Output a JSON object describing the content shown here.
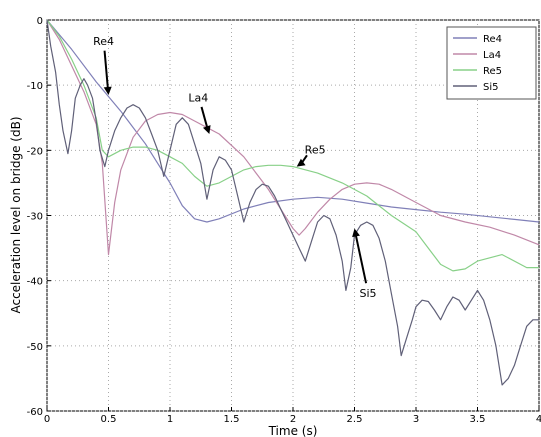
{
  "chart_data": {
    "type": "line",
    "xlabel": "Time (s)",
    "ylabel": "Acceleration level on bridge (dB)",
    "xlim": [
      0,
      4
    ],
    "ylim": [
      -60,
      0
    ],
    "xticks": [
      "0",
      "0.5",
      "1",
      "1.5",
      "2",
      "2.5",
      "3",
      "3.5",
      "4"
    ],
    "yticks": [
      "0",
      "-10",
      "-20",
      "-30",
      "-40",
      "-50",
      "-60"
    ],
    "grid": true,
    "legend_position": "top-right",
    "series": [
      {
        "name": "Re4",
        "color": "#8080b8",
        "points": [
          [
            0,
            0
          ],
          [
            0.2,
            -4.5
          ],
          [
            0.4,
            -9.5
          ],
          [
            0.6,
            -14
          ],
          [
            0.8,
            -19
          ],
          [
            1.0,
            -25
          ],
          [
            1.1,
            -28.5
          ],
          [
            1.2,
            -30.5
          ],
          [
            1.3,
            -31
          ],
          [
            1.4,
            -30.5
          ],
          [
            1.6,
            -29
          ],
          [
            1.8,
            -28
          ],
          [
            2.0,
            -27.5
          ],
          [
            2.2,
            -27.2
          ],
          [
            2.4,
            -27.5
          ],
          [
            2.6,
            -28.1
          ],
          [
            2.8,
            -28.7
          ],
          [
            3.0,
            -29.1
          ],
          [
            3.2,
            -29.5
          ],
          [
            3.4,
            -29.8
          ],
          [
            3.6,
            -30.2
          ],
          [
            3.8,
            -30.6
          ],
          [
            4.0,
            -31
          ]
        ]
      },
      {
        "name": "La4",
        "color": "#c088a8",
        "points": [
          [
            0,
            0
          ],
          [
            0.1,
            -3
          ],
          [
            0.2,
            -7
          ],
          [
            0.3,
            -11
          ],
          [
            0.4,
            -16
          ],
          [
            0.45,
            -22
          ],
          [
            0.5,
            -36
          ],
          [
            0.55,
            -28
          ],
          [
            0.6,
            -23
          ],
          [
            0.7,
            -18
          ],
          [
            0.8,
            -15.5
          ],
          [
            0.9,
            -14.5
          ],
          [
            1.0,
            -14.2
          ],
          [
            1.1,
            -14.5
          ],
          [
            1.2,
            -15.5
          ],
          [
            1.4,
            -17.5
          ],
          [
            1.6,
            -21
          ],
          [
            1.8,
            -26
          ],
          [
            1.9,
            -29
          ],
          [
            2.0,
            -32
          ],
          [
            2.05,
            -33
          ],
          [
            2.1,
            -32
          ],
          [
            2.2,
            -29.5
          ],
          [
            2.3,
            -27.5
          ],
          [
            2.4,
            -26
          ],
          [
            2.5,
            -25.2
          ],
          [
            2.6,
            -25
          ],
          [
            2.7,
            -25.2
          ],
          [
            2.8,
            -26
          ],
          [
            3.0,
            -28
          ],
          [
            3.2,
            -30
          ],
          [
            3.4,
            -31
          ],
          [
            3.6,
            -31.8
          ],
          [
            3.8,
            -33
          ],
          [
            4.0,
            -34.5
          ]
        ]
      },
      {
        "name": "Re5",
        "color": "#88d088",
        "points": [
          [
            0,
            0
          ],
          [
            0.1,
            -2.5
          ],
          [
            0.2,
            -6
          ],
          [
            0.3,
            -10
          ],
          [
            0.4,
            -15
          ],
          [
            0.45,
            -20
          ],
          [
            0.5,
            -21
          ],
          [
            0.6,
            -20
          ],
          [
            0.7,
            -19.5
          ],
          [
            0.8,
            -19.5
          ],
          [
            0.9,
            -20
          ],
          [
            1.0,
            -21
          ],
          [
            1.1,
            -22
          ],
          [
            1.2,
            -24
          ],
          [
            1.3,
            -25.5
          ],
          [
            1.4,
            -25
          ],
          [
            1.5,
            -24
          ],
          [
            1.6,
            -23
          ],
          [
            1.7,
            -22.5
          ],
          [
            1.8,
            -22.3
          ],
          [
            1.9,
            -22.3
          ],
          [
            2.0,
            -22.5
          ],
          [
            2.2,
            -23.5
          ],
          [
            2.4,
            -25
          ],
          [
            2.6,
            -27
          ],
          [
            2.8,
            -30
          ],
          [
            3.0,
            -32.5
          ],
          [
            3.1,
            -35
          ],
          [
            3.2,
            -37.5
          ],
          [
            3.3,
            -38.5
          ],
          [
            3.4,
            -38.2
          ],
          [
            3.5,
            -37
          ],
          [
            3.7,
            -36
          ],
          [
            3.9,
            -38
          ],
          [
            4.0,
            -38
          ]
        ]
      },
      {
        "name": "Si5",
        "color": "#606078",
        "points": [
          [
            0,
            0
          ],
          [
            0.03,
            -4
          ],
          [
            0.07,
            -8
          ],
          [
            0.1,
            -13
          ],
          [
            0.13,
            -17
          ],
          [
            0.17,
            -20.5
          ],
          [
            0.2,
            -17
          ],
          [
            0.23,
            -12
          ],
          [
            0.27,
            -10
          ],
          [
            0.3,
            -9
          ],
          [
            0.33,
            -10
          ],
          [
            0.37,
            -12
          ],
          [
            0.4,
            -15.5
          ],
          [
            0.43,
            -20
          ],
          [
            0.47,
            -22.5
          ],
          [
            0.5,
            -20
          ],
          [
            0.55,
            -17
          ],
          [
            0.6,
            -15
          ],
          [
            0.65,
            -13.5
          ],
          [
            0.7,
            -13
          ],
          [
            0.75,
            -13.5
          ],
          [
            0.8,
            -15
          ],
          [
            0.85,
            -17.5
          ],
          [
            0.9,
            -20
          ],
          [
            0.95,
            -24
          ],
          [
            1.0,
            -20
          ],
          [
            1.05,
            -16
          ],
          [
            1.1,
            -15
          ],
          [
            1.15,
            -16
          ],
          [
            1.2,
            -19
          ],
          [
            1.25,
            -22
          ],
          [
            1.3,
            -27.5
          ],
          [
            1.35,
            -23
          ],
          [
            1.4,
            -21
          ],
          [
            1.45,
            -21.5
          ],
          [
            1.5,
            -23
          ],
          [
            1.55,
            -27
          ],
          [
            1.6,
            -31
          ],
          [
            1.65,
            -28
          ],
          [
            1.7,
            -26
          ],
          [
            1.75,
            -25.2
          ],
          [
            1.8,
            -25.5
          ],
          [
            1.85,
            -27
          ],
          [
            1.9,
            -29
          ],
          [
            1.95,
            -31
          ],
          [
            2.0,
            -33
          ],
          [
            2.05,
            -35
          ],
          [
            2.1,
            -37
          ],
          [
            2.15,
            -34
          ],
          [
            2.2,
            -31
          ],
          [
            2.25,
            -30
          ],
          [
            2.3,
            -30.5
          ],
          [
            2.35,
            -33
          ],
          [
            2.4,
            -37
          ],
          [
            2.43,
            -41.5
          ],
          [
            2.47,
            -38
          ],
          [
            2.5,
            -33
          ],
          [
            2.55,
            -31.5
          ],
          [
            2.6,
            -31
          ],
          [
            2.65,
            -31.5
          ],
          [
            2.7,
            -33.5
          ],
          [
            2.75,
            -37
          ],
          [
            2.8,
            -42
          ],
          [
            2.85,
            -47
          ],
          [
            2.88,
            -51.5
          ],
          [
            2.92,
            -49
          ],
          [
            2.97,
            -46
          ],
          [
            3.0,
            -44
          ],
          [
            3.05,
            -43
          ],
          [
            3.1,
            -43.2
          ],
          [
            3.15,
            -44.5
          ],
          [
            3.2,
            -46
          ],
          [
            3.25,
            -44
          ],
          [
            3.3,
            -42.5
          ],
          [
            3.35,
            -43
          ],
          [
            3.4,
            -44.5
          ],
          [
            3.45,
            -43
          ],
          [
            3.5,
            -41.5
          ],
          [
            3.55,
            -43
          ],
          [
            3.6,
            -46
          ],
          [
            3.65,
            -50
          ],
          [
            3.7,
            -56
          ],
          [
            3.75,
            -55
          ],
          [
            3.8,
            -53
          ],
          [
            3.85,
            -50
          ],
          [
            3.9,
            -47
          ],
          [
            3.95,
            -46
          ],
          [
            4.0,
            -46
          ]
        ]
      }
    ],
    "annotations": [
      {
        "text": "Re4",
        "tip": [
          0.5,
          -11.5
        ],
        "label_at": [
          0.46,
          -3.8
        ]
      },
      {
        "text": "La4",
        "tip": [
          1.32,
          -17.5
        ],
        "label_at": [
          1.23,
          -12.5
        ]
      },
      {
        "text": "Re5",
        "tip": [
          2.03,
          -22.5
        ],
        "label_at": [
          2.18,
          -20.5
        ]
      },
      {
        "text": "Si5",
        "tip": [
          2.5,
          -32
        ],
        "label_at": [
          2.61,
          -42.5
        ]
      }
    ]
  }
}
